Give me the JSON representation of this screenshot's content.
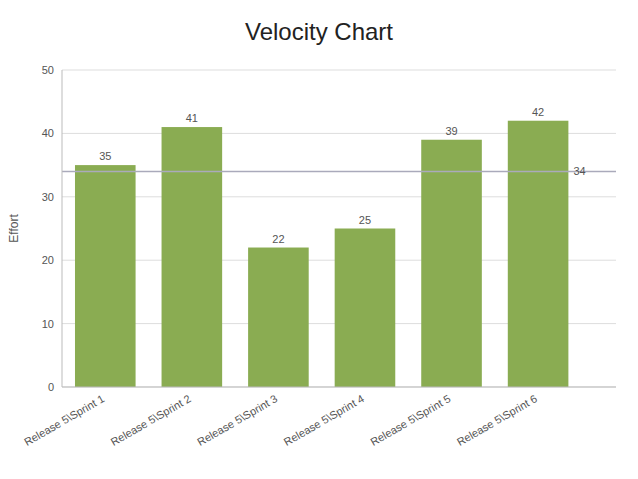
{
  "chart_data": {
    "type": "bar",
    "title": "Velocity Chart",
    "categories": [
      "Release 5\\Sprint 1",
      "Release 5\\Sprint 2",
      "Release 5\\Sprint 3",
      "Release 5\\Sprint 4",
      "Release 5\\Sprint 5",
      "Release 5\\Sprint 6"
    ],
    "values": [
      35,
      41,
      22,
      25,
      39,
      42
    ],
    "color": "#8aac52",
    "reference_line": {
      "value": 34,
      "color": "#aaaabb"
    },
    "ylabel": "Effort",
    "ylim": [
      0,
      50
    ],
    "yticks": [
      0,
      10,
      20,
      30,
      40,
      50
    ],
    "grid": true,
    "data_labels": true
  }
}
